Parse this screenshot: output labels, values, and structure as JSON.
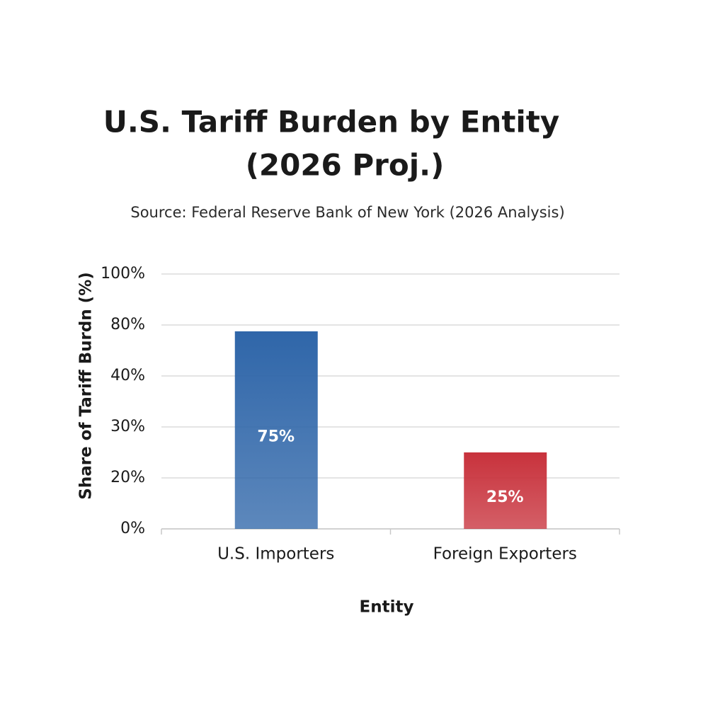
{
  "chart_data": {
    "type": "bar",
    "title": [
      "U.S. Tariff Burden by Entity",
      "(2026 Proj.)"
    ],
    "subtitle": "Source: Federal Reserve Bank of New York (2026 Analysis)",
    "x_label": "Entity",
    "y_label": "Share of Tariff Burdn (%)",
    "categories": [
      "U.S. Importers",
      "Foreign Exporters"
    ],
    "values": [
      75,
      25
    ],
    "value_labels": [
      "75%",
      "25%"
    ],
    "colors": [
      "#2f66a9",
      "#c8323c"
    ],
    "ylim": [
      0,
      100
    ],
    "yticks": [
      {
        "value": 0,
        "label": "0%"
      },
      {
        "value": 20,
        "label": "20%"
      },
      {
        "value": 30,
        "label": "30%"
      },
      {
        "value": 40,
        "label": "40%"
      },
      {
        "value": 80,
        "label": "80%"
      },
      {
        "value": 100,
        "label": "100%"
      }
    ],
    "grid": true
  }
}
